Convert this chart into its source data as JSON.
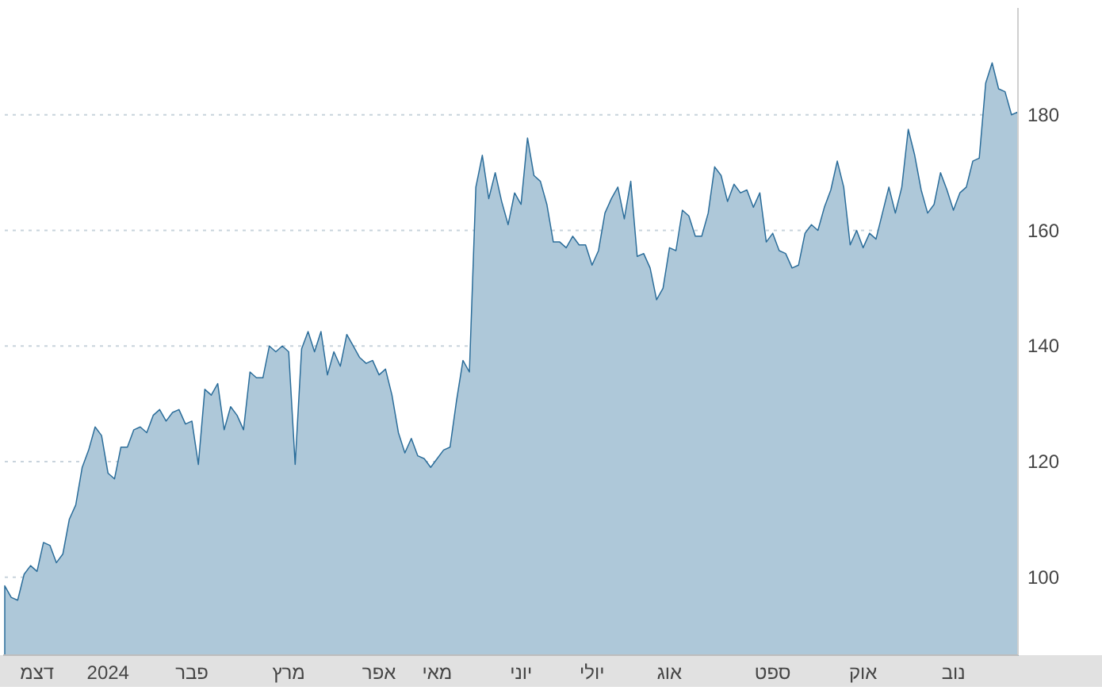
{
  "chart_data": {
    "type": "area",
    "color": "#2b6d9a",
    "categories": [
      null,
      null,
      null,
      null,
      null,
      "דצמ",
      null,
      null,
      null,
      null,
      null,
      null,
      null,
      null,
      null,
      null,
      "2024",
      null,
      null,
      null,
      null,
      null,
      null,
      null,
      null,
      null,
      null,
      null,
      null,
      "פבר",
      null,
      null,
      null,
      null,
      null,
      null,
      null,
      null,
      null,
      null,
      null,
      null,
      null,
      null,
      "מרץ",
      null,
      null,
      null,
      null,
      null,
      null,
      null,
      null,
      null,
      null,
      null,
      null,
      null,
      "אפר",
      null,
      null,
      null,
      null,
      null,
      null,
      null,
      null,
      "מאי",
      null,
      null,
      null,
      null,
      null,
      null,
      null,
      null,
      null,
      null,
      null,
      null,
      "יוני",
      null,
      null,
      null,
      null,
      null,
      null,
      null,
      null,
      null,
      null,
      "יולי",
      null,
      null,
      null,
      null,
      null,
      null,
      null,
      null,
      null,
      null,
      null,
      "אוג",
      null,
      null,
      null,
      null,
      null,
      null,
      null,
      null,
      null,
      null,
      null,
      null,
      null,
      null,
      null,
      "ספט",
      null,
      null,
      null,
      null,
      null,
      null,
      null,
      null,
      null,
      null,
      null,
      null,
      null,
      "אוק",
      null,
      null,
      null,
      null,
      null,
      null,
      null,
      null,
      null,
      null,
      null,
      null,
      null,
      "נוב",
      null,
      null,
      null,
      null,
      null,
      null,
      null,
      null,
      null,
      null
    ],
    "values": [
      98.5,
      96.5,
      96,
      100.5,
      102,
      101,
      106,
      105.5,
      102.5,
      104,
      110,
      112.5,
      119,
      122,
      126,
      124.5,
      118,
      117,
      122.5,
      122.5,
      125.5,
      126,
      125,
      128,
      129,
      127,
      128.5,
      129,
      126.5,
      127,
      119.5,
      132.5,
      131.5,
      133.5,
      125.5,
      129.5,
      128,
      125.5,
      135.5,
      134.5,
      134.5,
      140,
      139,
      140,
      139,
      119.5,
      139.5,
      142.5,
      139,
      142.5,
      135,
      139,
      136.5,
      142,
      140,
      138,
      137,
      137.5,
      135,
      136,
      131.5,
      125,
      121.5,
      124,
      121,
      120.5,
      119,
      120.5,
      122,
      122.5,
      130.5,
      137.5,
      135.5,
      167.5,
      173,
      165.5,
      170,
      165,
      161,
      166.5,
      164.5,
      176,
      169.5,
      168.5,
      164.5,
      158,
      158,
      157,
      159,
      157.5,
      157.5,
      154,
      156.5,
      163,
      165.5,
      167.5,
      162,
      168.5,
      155.5,
      156,
      153.5,
      148,
      150,
      157,
      156.5,
      163.5,
      162.5,
      159,
      159,
      163,
      171,
      169.5,
      165,
      168,
      166.5,
      167,
      164,
      166.5,
      158,
      159.5,
      156.5,
      156,
      153.5,
      154,
      159.5,
      161,
      160,
      164,
      167,
      172,
      167.5,
      157.5,
      160,
      157,
      159.5,
      158.5,
      163,
      167.5,
      163,
      167.5,
      177.5,
      173,
      167,
      163,
      164.5,
      170,
      167,
      163.5,
      166.5,
      167.5,
      172,
      172.5,
      185.5,
      189,
      184.5,
      184,
      180,
      180.5
    ],
    "ylim": [
      86.5,
      198.5
    ],
    "yticks": [
      100,
      120,
      140,
      160,
      180
    ],
    "grid": "y"
  }
}
